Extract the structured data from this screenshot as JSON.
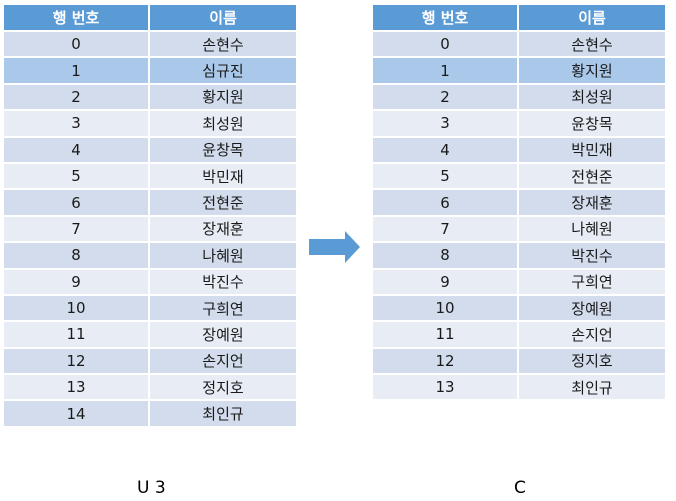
{
  "headers": [
    "행 번호",
    "이름"
  ],
  "left_table": {
    "highlighted_row": 1,
    "rows": [
      [
        "0",
        "손현수"
      ],
      [
        "1",
        "심규진"
      ],
      [
        "2",
        "황지원"
      ],
      [
        "3",
        "최성원"
      ],
      [
        "4",
        "윤창목"
      ],
      [
        "5",
        "박민재"
      ],
      [
        "6",
        "전현준"
      ],
      [
        "7",
        "장재훈"
      ],
      [
        "8",
        "나혜원"
      ],
      [
        "9",
        "박진수"
      ],
      [
        "10",
        "구희연"
      ],
      [
        "11",
        "장예원"
      ],
      [
        "12",
        "손지언"
      ],
      [
        "13",
        "정지호"
      ],
      [
        "14",
        "최인규"
      ]
    ],
    "caption": "U 3"
  },
  "right_table": {
    "highlighted_row": 1,
    "rows": [
      [
        "0",
        "손현수"
      ],
      [
        "1",
        "황지원"
      ],
      [
        "2",
        "최성원"
      ],
      [
        "3",
        "윤창목"
      ],
      [
        "4",
        "박민재"
      ],
      [
        "5",
        "전현준"
      ],
      [
        "6",
        "장재훈"
      ],
      [
        "7",
        "나혜원"
      ],
      [
        "8",
        "박진수"
      ],
      [
        "9",
        "구희연"
      ],
      [
        "10",
        "장예원"
      ],
      [
        "11",
        "손지언"
      ],
      [
        "12",
        "정지호"
      ],
      [
        "13",
        "최인규"
      ]
    ],
    "caption": "C"
  },
  "colors": {
    "header": "#5b9bd5",
    "row_light": "#e8edf5",
    "row_dark": "#d2dcec",
    "highlight": "#a9c8ea",
    "arrow": "#5b9bd5"
  },
  "arrow_icon": "right-arrow-icon"
}
